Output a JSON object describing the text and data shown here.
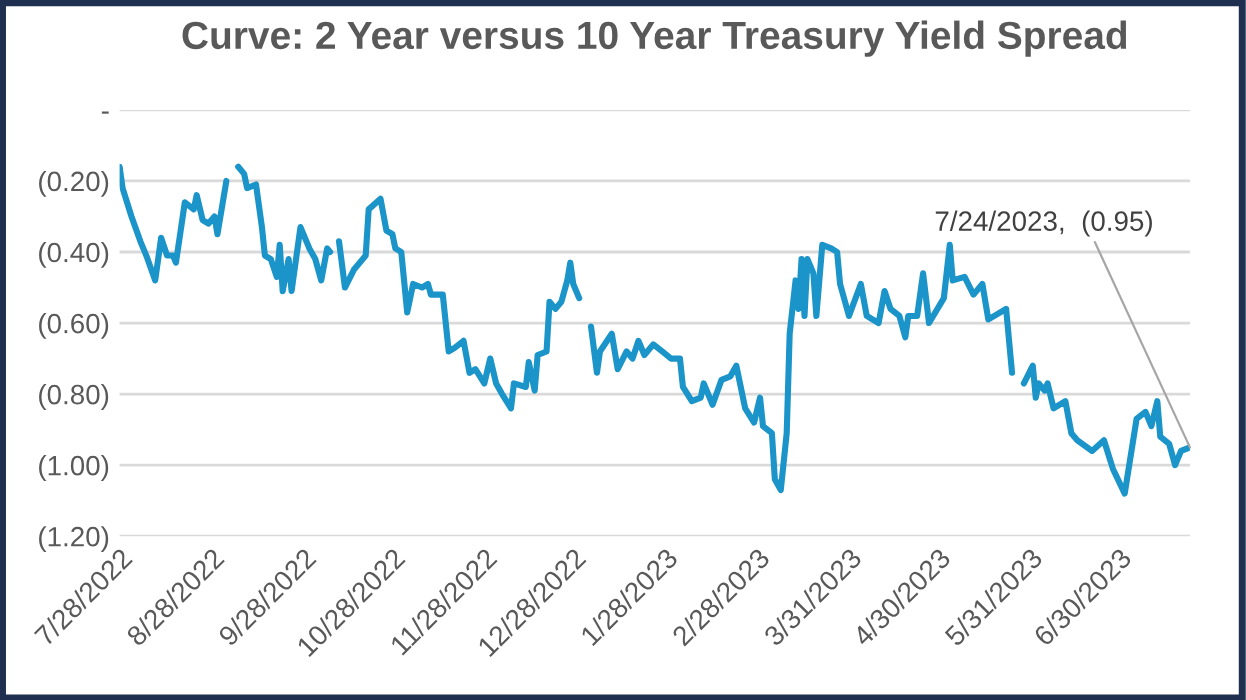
{
  "chart_data": {
    "type": "line",
    "title": "Curve: 2 Year versus 10 Year Treasury Yield Spread",
    "x": [
      "2022-07-28",
      "2022-07-29",
      "2022-08-01",
      "2022-08-04",
      "2022-08-06",
      "2022-08-09",
      "2022-08-11",
      "2022-08-13",
      "2022-08-15",
      "2022-08-16",
      "2022-08-19",
      "2022-08-22",
      "2022-08-23",
      "2022-08-25",
      "2022-08-27",
      "2022-08-29",
      "2022-08-30",
      "2022-09-02",
      "2022-09-04",
      "2022-09-06",
      "2022-09-08",
      "2022-09-09",
      "2022-09-12",
      "2022-09-14",
      "2022-09-15",
      "2022-09-17",
      "2022-09-19",
      "2022-09-20",
      "2022-09-21",
      "2022-09-23",
      "2022-09-24",
      "2022-09-27",
      "2022-09-30",
      "2022-10-02",
      "2022-10-04",
      "2022-10-06",
      "2022-10-07",
      "2022-10-09",
      "2022-10-10",
      "2022-10-12",
      "2022-10-15",
      "2022-10-19",
      "2022-10-20",
      "2022-10-24",
      "2022-10-26",
      "2022-10-28",
      "2022-10-29",
      "2022-10-31",
      "2022-11-02",
      "2022-11-04",
      "2022-11-07",
      "2022-11-09",
      "2022-11-10",
      "2022-11-14",
      "2022-11-16",
      "2022-11-18",
      "2022-11-21",
      "2022-11-23",
      "2022-11-25",
      "2022-11-28",
      "2022-11-30",
      "2022-12-02",
      "2022-12-04",
      "2022-12-07",
      "2022-12-08",
      "2022-12-12",
      "2022-12-13",
      "2022-12-15",
      "2022-12-16",
      "2022-12-19",
      "2022-12-20",
      "2022-12-22",
      "2022-12-24",
      "2022-12-26",
      "2022-12-27",
      "2022-12-28",
      "2022-12-30",
      "2023-01-01",
      "2023-01-03",
      "2023-01-05",
      "2023-01-06",
      "2023-01-10",
      "2023-01-12",
      "2023-01-15",
      "2023-01-17",
      "2023-01-19",
      "2023-01-21",
      "2023-01-24",
      "2023-01-27",
      "2023-01-30",
      "2023-02-02",
      "2023-02-03",
      "2023-02-06",
      "2023-02-09",
      "2023-02-10",
      "2023-02-13",
      "2023-02-16",
      "2023-02-19",
      "2023-02-21",
      "2023-02-24",
      "2023-02-27",
      "2023-03-01",
      "2023-03-02",
      "2023-03-05",
      "2023-03-06",
      "2023-03-08",
      "2023-03-10",
      "2023-03-11",
      "2023-03-13",
      "2023-03-14",
      "2023-03-15",
      "2023-03-16",
      "2023-03-17",
      "2023-03-19",
      "2023-03-20",
      "2023-03-22",
      "2023-03-25",
      "2023-03-27",
      "2023-03-28",
      "2023-03-31",
      "2023-04-04",
      "2023-04-06",
      "2023-04-10",
      "2023-04-12",
      "2023-04-14",
      "2023-04-17",
      "2023-04-19",
      "2023-04-20",
      "2023-04-23",
      "2023-04-25",
      "2023-04-27",
      "2023-05-02",
      "2023-05-04",
      "2023-05-05",
      "2023-05-09",
      "2023-05-12",
      "2023-05-15",
      "2023-05-17",
      "2023-05-23",
      "2023-05-25",
      "2023-05-27",
      "2023-05-29",
      "2023-06-01",
      "2023-06-02",
      "2023-06-03",
      "2023-06-05",
      "2023-06-06",
      "2023-06-08",
      "2023-06-12",
      "2023-06-14",
      "2023-06-16",
      "2023-06-21",
      "2023-06-25",
      "2023-06-28",
      "2023-07-02",
      "2023-07-06",
      "2023-07-09",
      "2023-07-11",
      "2023-07-13",
      "2023-07-14",
      "2023-07-17",
      "2023-07-19",
      "2023-07-21",
      "2023-07-24"
    ],
    "series": [
      {
        "color": "#1b94c9",
        "values": [
          -0.16,
          -0.22,
          -0.3,
          -0.37,
          -0.41,
          -0.48,
          -0.36,
          -0.41,
          -0.41,
          -0.43,
          -0.26,
          -0.28,
          -0.24,
          -0.31,
          -0.32,
          -0.3,
          -0.35,
          -0.2,
          null,
          -0.16,
          -0.18,
          -0.22,
          -0.21,
          -0.33,
          -0.41,
          -0.42,
          -0.47,
          -0.38,
          -0.51,
          -0.42,
          -0.51,
          -0.33,
          -0.39,
          -0.42,
          -0.48,
          -0.39,
          -0.4,
          null,
          -0.37,
          -0.5,
          -0.45,
          -0.41,
          -0.28,
          -0.25,
          -0.34,
          -0.35,
          -0.39,
          -0.4,
          -0.57,
          -0.49,
          -0.5,
          -0.49,
          -0.52,
          -0.52,
          -0.68,
          -0.67,
          -0.65,
          -0.74,
          -0.73,
          -0.77,
          -0.7,
          -0.77,
          -0.8,
          -0.84,
          -0.77,
          -0.78,
          -0.71,
          -0.79,
          -0.69,
          -0.68,
          -0.54,
          -0.56,
          -0.54,
          -0.48,
          -0.43,
          -0.49,
          -0.53,
          null,
          -0.61,
          -0.74,
          -0.68,
          -0.63,
          -0.73,
          -0.68,
          -0.7,
          -0.65,
          -0.69,
          -0.66,
          -0.68,
          -0.7,
          -0.7,
          -0.78,
          -0.82,
          -0.81,
          -0.77,
          -0.83,
          -0.76,
          -0.75,
          -0.72,
          -0.84,
          -0.88,
          -0.81,
          -0.89,
          -0.91,
          -1.04,
          -1.07,
          -0.91,
          -0.63,
          -0.48,
          -0.56,
          -0.42,
          -0.58,
          -0.42,
          -0.46,
          -0.58,
          -0.38,
          -0.39,
          -0.4,
          -0.49,
          -0.58,
          -0.49,
          -0.58,
          -0.6,
          -0.51,
          -0.56,
          -0.58,
          -0.64,
          -0.58,
          -0.58,
          -0.46,
          -0.6,
          -0.53,
          -0.38,
          -0.48,
          -0.47,
          -0.52,
          -0.49,
          -0.59,
          -0.56,
          -0.74,
          null,
          -0.77,
          -0.72,
          -0.81,
          -0.77,
          -0.79,
          -0.77,
          -0.84,
          -0.82,
          -0.91,
          -0.93,
          -0.96,
          -0.93,
          -1.01,
          -1.08,
          -0.87,
          -0.85,
          -0.89,
          -0.82,
          -0.92,
          -0.94,
          -1.0,
          -0.96,
          -0.95
        ]
      }
    ],
    "xlim": [
      "2022-07-28",
      "2023-07-24"
    ],
    "xticks": [
      {
        "value": "2022-07-28",
        "label": "7/28/2022"
      },
      {
        "value": "2022-08-28",
        "label": "8/28/2022"
      },
      {
        "value": "2022-09-28",
        "label": "9/28/2022"
      },
      {
        "value": "2022-10-28",
        "label": "10/28/2022"
      },
      {
        "value": "2022-11-28",
        "label": "11/28/2022"
      },
      {
        "value": "2022-12-28",
        "label": "12/28/2022"
      },
      {
        "value": "2023-01-28",
        "label": "1/28/2023"
      },
      {
        "value": "2023-02-28",
        "label": "2/28/2023"
      },
      {
        "value": "2023-03-31",
        "label": "3/31/2023"
      },
      {
        "value": "2023-04-30",
        "label": "4/30/2023"
      },
      {
        "value": "2023-05-31",
        "label": "5/31/2023"
      },
      {
        "value": "2023-06-30",
        "label": "6/30/2023"
      }
    ],
    "ylim": [
      -1.2,
      0
    ],
    "yticks": [
      {
        "value": 0,
        "label": "-"
      },
      {
        "value": -0.2,
        "label": "(0.20)"
      },
      {
        "value": -0.4,
        "label": "(0.40)"
      },
      {
        "value": -0.6,
        "label": "(0.60)"
      },
      {
        "value": -0.8,
        "label": "(0.80)"
      },
      {
        "value": -1.0,
        "label": "(1.00)"
      },
      {
        "value": -1.2,
        "label": "(1.20)"
      }
    ],
    "grid": "y",
    "legend": false,
    "annotations": [
      {
        "text": "7/24/2023,  (0.95)",
        "x": "2023-07-24",
        "y": -0.95
      }
    ]
  }
}
